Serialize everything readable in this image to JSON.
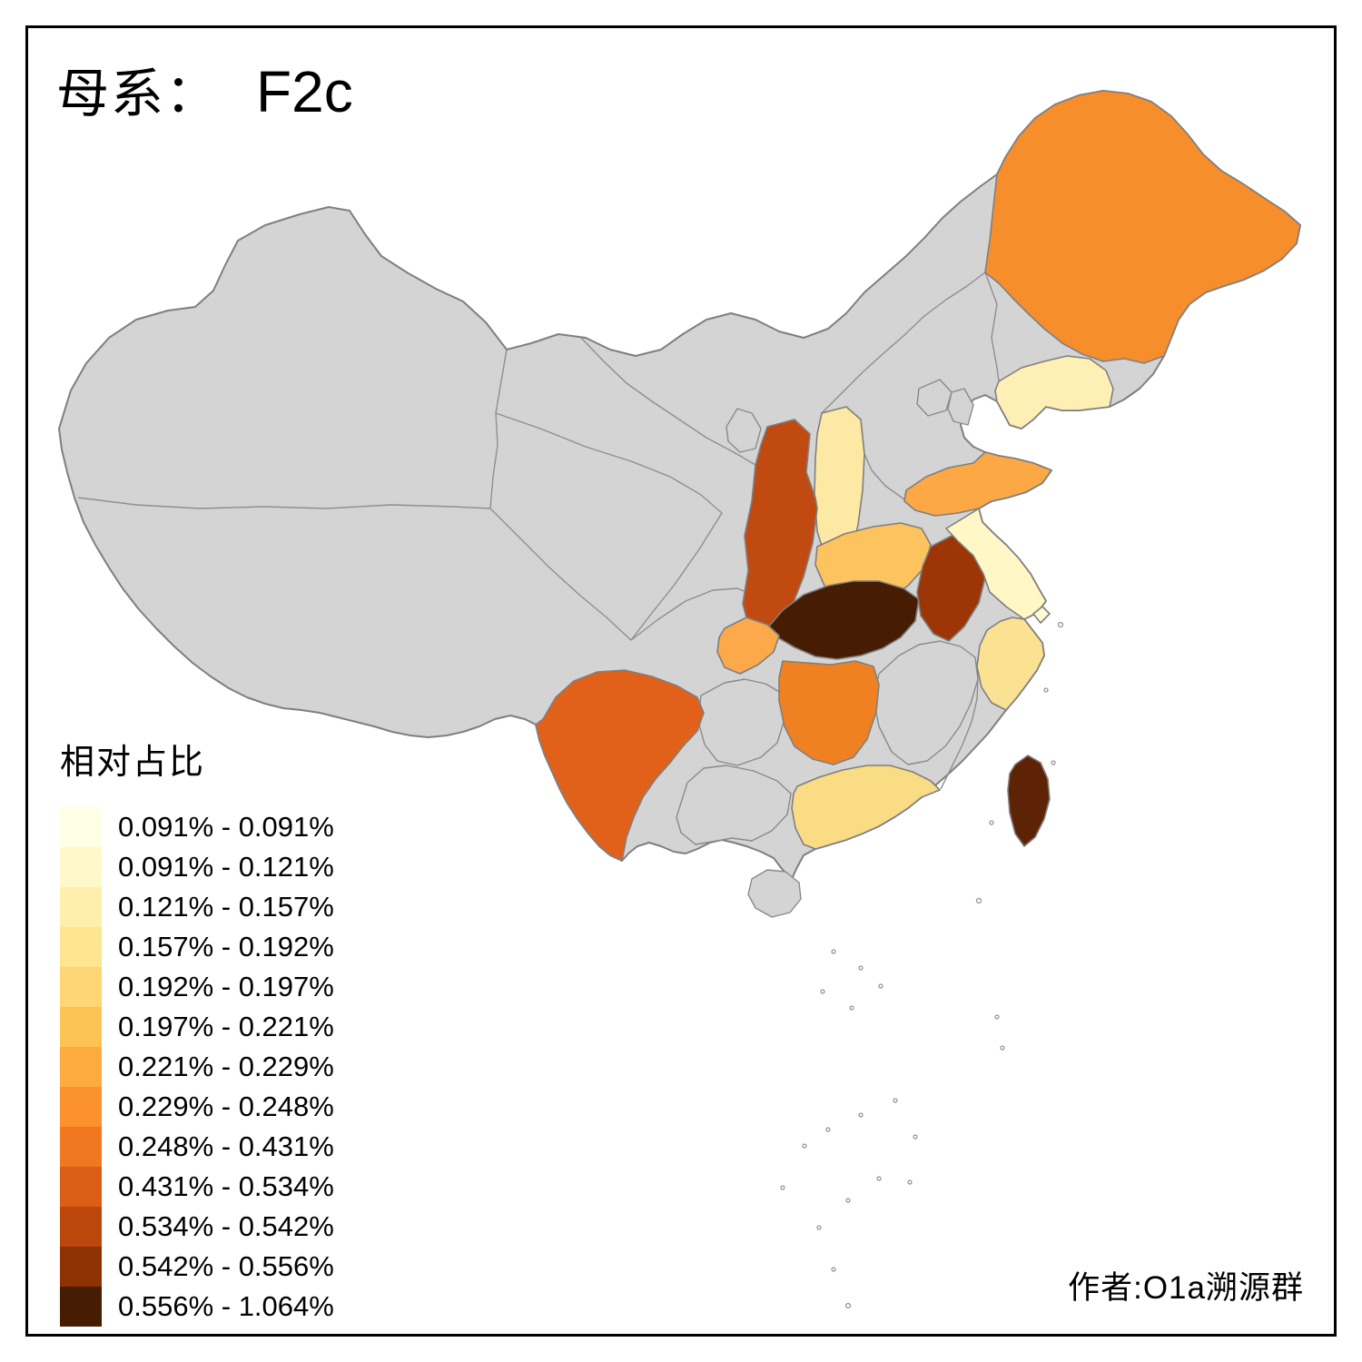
{
  "title": {
    "prefix": "母系：",
    "value": "F2c"
  },
  "legend": {
    "title": "相对占比",
    "items": [
      {
        "label": "0.091% - 0.091%",
        "color": "#FFFFE5"
      },
      {
        "label": "0.091% - 0.121%",
        "color": "#FFF8C9"
      },
      {
        "label": "0.121% - 0.157%",
        "color": "#FEF0AC"
      },
      {
        "label": "0.157% - 0.192%",
        "color": "#FEE590"
      },
      {
        "label": "0.192% - 0.197%",
        "color": "#FED673"
      },
      {
        "label": "0.197% - 0.221%",
        "color": "#FEC355"
      },
      {
        "label": "0.221% - 0.229%",
        "color": "#FEAC3F"
      },
      {
        "label": "0.229% - 0.248%",
        "color": "#FB922D"
      },
      {
        "label": "0.248% - 0.431%",
        "color": "#EF7820"
      },
      {
        "label": "0.431% - 0.534%",
        "color": "#DC5D15"
      },
      {
        "label": "0.534% - 0.542%",
        "color": "#BC470D"
      },
      {
        "label": "0.542% - 0.556%",
        "color": "#8F3305"
      },
      {
        "label": "0.556% - 1.064%",
        "color": "#461D03"
      }
    ]
  },
  "attribution": "作者:O1a溯源群",
  "map": {
    "no_data_color": "#D4D4D4",
    "border_color": "#7F7F7F",
    "provinces": {
      "heilongjiang": {
        "color": "#F78E2C",
        "legend_bin": "0.229% - 0.248%"
      },
      "liaoning": {
        "color": "#FEF0B4",
        "legend_bin": "0.121% - 0.157%"
      },
      "shanxi": {
        "color": "#FDE9A4",
        "legend_bin": "0.157% - 0.192%"
      },
      "shandong": {
        "color": "#FBA845",
        "legend_bin": "0.197% - 0.221%"
      },
      "henan": {
        "color": "#FCC35F",
        "legend_bin": "0.192% - 0.197%"
      },
      "shaanxi": {
        "color": "#C14A10",
        "legend_bin": "0.431% - 0.534%"
      },
      "hubei": {
        "color": "#461D03",
        "legend_bin": "0.556% - 1.064%"
      },
      "anhui": {
        "color": "#9E3507",
        "legend_bin": "0.534% - 0.542%"
      },
      "jiangsu": {
        "color": "#FFF7C5",
        "legend_bin": "0.091% - 0.121%"
      },
      "shanghai": {
        "color": "#FFFBD9",
        "legend_bin": "0.091% - 0.091%"
      },
      "zhejiang": {
        "color": "#FBE292",
        "legend_bin": "0.157% - 0.192%"
      },
      "chongqing": {
        "color": "#FCA94C",
        "legend_bin": "0.221% - 0.229%"
      },
      "hunan": {
        "color": "#F08122",
        "legend_bin": "0.229% - 0.248%"
      },
      "yunnan": {
        "color": "#E2611A",
        "legend_bin": "0.248% - 0.431%"
      },
      "guangdong": {
        "color": "#FADC85",
        "legend_bin": "0.157% - 0.192%"
      },
      "taiwan": {
        "color": "#5E2305",
        "legend_bin": "0.542% - 0.556%"
      }
    }
  }
}
